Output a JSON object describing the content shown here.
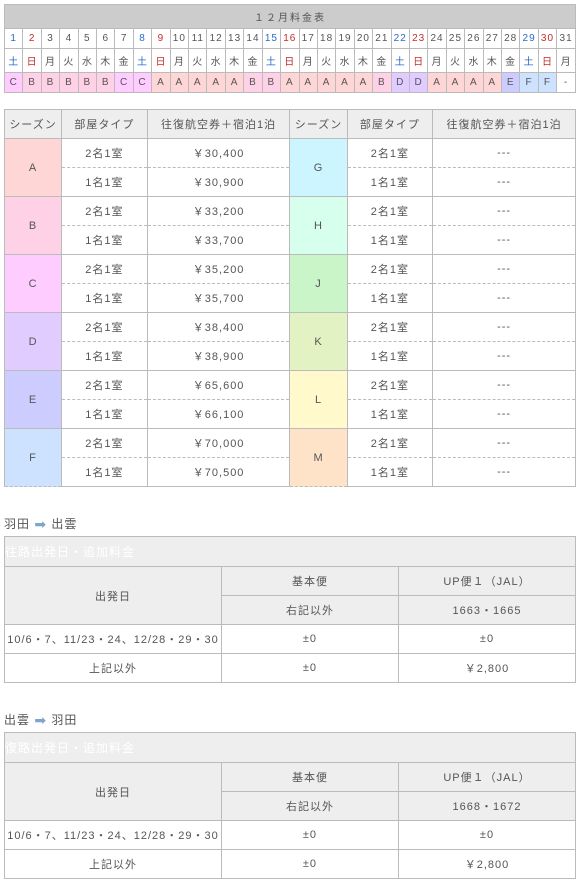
{
  "calendar": {
    "title": "１２月料金表",
    "days": [
      {
        "n": "1",
        "ncls": "sat",
        "w": "土",
        "wcls": "sat",
        "s": "C",
        "scls": "sC"
      },
      {
        "n": "2",
        "ncls": "sun",
        "w": "日",
        "wcls": "sun",
        "s": "B",
        "scls": "sB"
      },
      {
        "n": "3",
        "ncls": "",
        "w": "月",
        "wcls": "",
        "s": "B",
        "scls": "sB"
      },
      {
        "n": "4",
        "ncls": "",
        "w": "火",
        "wcls": "",
        "s": "B",
        "scls": "sB"
      },
      {
        "n": "5",
        "ncls": "",
        "w": "水",
        "wcls": "",
        "s": "B",
        "scls": "sB"
      },
      {
        "n": "6",
        "ncls": "",
        "w": "木",
        "wcls": "",
        "s": "B",
        "scls": "sB"
      },
      {
        "n": "7",
        "ncls": "",
        "w": "金",
        "wcls": "",
        "s": "C",
        "scls": "sC"
      },
      {
        "n": "8",
        "ncls": "sat",
        "w": "土",
        "wcls": "sat",
        "s": "C",
        "scls": "sC"
      },
      {
        "n": "9",
        "ncls": "sun",
        "w": "日",
        "wcls": "sun",
        "s": "A",
        "scls": "sA"
      },
      {
        "n": "10",
        "ncls": "",
        "w": "月",
        "wcls": "",
        "s": "A",
        "scls": "sA"
      },
      {
        "n": "11",
        "ncls": "",
        "w": "火",
        "wcls": "",
        "s": "A",
        "scls": "sA"
      },
      {
        "n": "12",
        "ncls": "",
        "w": "水",
        "wcls": "",
        "s": "A",
        "scls": "sA"
      },
      {
        "n": "13",
        "ncls": "",
        "w": "木",
        "wcls": "",
        "s": "A",
        "scls": "sA"
      },
      {
        "n": "14",
        "ncls": "",
        "w": "金",
        "wcls": "",
        "s": "B",
        "scls": "sB"
      },
      {
        "n": "15",
        "ncls": "sat",
        "w": "土",
        "wcls": "sat",
        "s": "B",
        "scls": "sB"
      },
      {
        "n": "16",
        "ncls": "sun",
        "w": "日",
        "wcls": "sun",
        "s": "A",
        "scls": "sA"
      },
      {
        "n": "17",
        "ncls": "",
        "w": "月",
        "wcls": "",
        "s": "A",
        "scls": "sA"
      },
      {
        "n": "18",
        "ncls": "",
        "w": "火",
        "wcls": "",
        "s": "A",
        "scls": "sA"
      },
      {
        "n": "19",
        "ncls": "",
        "w": "水",
        "wcls": "",
        "s": "A",
        "scls": "sA"
      },
      {
        "n": "20",
        "ncls": "",
        "w": "木",
        "wcls": "",
        "s": "A",
        "scls": "sA"
      },
      {
        "n": "21",
        "ncls": "",
        "w": "金",
        "wcls": "",
        "s": "B",
        "scls": "sB"
      },
      {
        "n": "22",
        "ncls": "sat",
        "w": "土",
        "wcls": "sat",
        "s": "D",
        "scls": "sD"
      },
      {
        "n": "23",
        "ncls": "sun",
        "w": "日",
        "wcls": "sun",
        "s": "D",
        "scls": "sD"
      },
      {
        "n": "24",
        "ncls": "",
        "w": "月",
        "wcls": "",
        "s": "A",
        "scls": "sA"
      },
      {
        "n": "25",
        "ncls": "",
        "w": "火",
        "wcls": "",
        "s": "A",
        "scls": "sA"
      },
      {
        "n": "26",
        "ncls": "",
        "w": "水",
        "wcls": "",
        "s": "A",
        "scls": "sA"
      },
      {
        "n": "27",
        "ncls": "",
        "w": "木",
        "wcls": "",
        "s": "A",
        "scls": "sA"
      },
      {
        "n": "28",
        "ncls": "",
        "w": "金",
        "wcls": "",
        "s": "E",
        "scls": "sE"
      },
      {
        "n": "29",
        "ncls": "sat",
        "w": "土",
        "wcls": "sat",
        "s": "F",
        "scls": "sF"
      },
      {
        "n": "30",
        "ncls": "sun",
        "w": "日",
        "wcls": "sun",
        "s": "F",
        "scls": "sF"
      },
      {
        "n": "31",
        "ncls": "",
        "w": "月",
        "wcls": "",
        "s": "-",
        "scls": ""
      }
    ]
  },
  "price": {
    "headers": {
      "season": "シーズン",
      "room": "部屋タイプ",
      "price": "往復航空券＋宿泊1泊"
    },
    "rows": [
      {
        "s": "A",
        "scls": "pA",
        "r1": "2名1室",
        "p1": "￥30,400",
        "r2": "1名1室",
        "p2": "￥30,900",
        "s2": "G",
        "s2cls": "pG",
        "r3": "2名1室",
        "p3": "---",
        "r4": "1名1室",
        "p4": "---"
      },
      {
        "s": "B",
        "scls": "pB",
        "r1": "2名1室",
        "p1": "￥33,200",
        "r2": "1名1室",
        "p2": "￥33,700",
        "s2": "H",
        "s2cls": "pH",
        "r3": "2名1室",
        "p3": "---",
        "r4": "1名1室",
        "p4": "---"
      },
      {
        "s": "C",
        "scls": "pC",
        "r1": "2名1室",
        "p1": "￥35,200",
        "r2": "1名1室",
        "p2": "￥35,700",
        "s2": "J",
        "s2cls": "pJ",
        "r3": "2名1室",
        "p3": "---",
        "r4": "1名1室",
        "p4": "---"
      },
      {
        "s": "D",
        "scls": "pD",
        "r1": "2名1室",
        "p1": "￥38,400",
        "r2": "1名1室",
        "p2": "￥38,900",
        "s2": "K",
        "s2cls": "pK",
        "r3": "2名1室",
        "p3": "---",
        "r4": "1名1室",
        "p4": "---"
      },
      {
        "s": "E",
        "scls": "pE",
        "r1": "2名1室",
        "p1": "￥65,600",
        "r2": "1名1室",
        "p2": "￥66,100",
        "s2": "L",
        "s2cls": "pL",
        "r3": "2名1室",
        "p3": "---",
        "r4": "1名1室",
        "p4": "---"
      },
      {
        "s": "F",
        "scls": "pF",
        "r1": "2名1室",
        "p1": "￥70,000",
        "r2": "1名1室",
        "p2": "￥70,500",
        "s2": "M",
        "s2cls": "pM",
        "r3": "2名1室",
        "p3": "---",
        "r4": "1名1室",
        "p4": "---"
      }
    ]
  },
  "flights": [
    {
      "route": {
        "from": "羽田",
        "to": "出雲"
      },
      "title": "往路出発日・追加料金",
      "head": {
        "dep": "出発日",
        "basic": "基本便",
        "up": "UP便１（JAL）",
        "basic_sub": "右記以外",
        "up_sub": "1663・1665"
      },
      "rows": [
        {
          "d": "10/6・7、11/23・24、12/28・29・30",
          "b": "±0",
          "u": "±0"
        },
        {
          "d": "上記以外",
          "b": "±0",
          "u": "￥2,800"
        }
      ]
    },
    {
      "route": {
        "from": "出雲",
        "to": "羽田"
      },
      "title": "復路出発日・追加料金",
      "head": {
        "dep": "出発日",
        "basic": "基本便",
        "up": "UP便１（JAL）",
        "basic_sub": "右記以外",
        "up_sub": "1668・1672"
      },
      "rows": [
        {
          "d": "10/6・7、11/23・24、12/28・29・30",
          "b": "±0",
          "u": "±0"
        },
        {
          "d": "上記以外",
          "b": "±0",
          "u": "￥2,800"
        }
      ]
    }
  ]
}
